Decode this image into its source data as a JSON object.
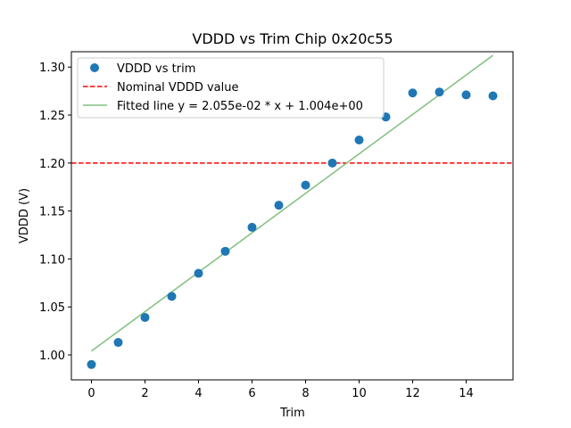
{
  "chart_data": {
    "type": "scatter",
    "title": "VDDD vs Trim Chip 0x20c55",
    "xlabel": "Trim",
    "ylabel": "VDDD (V)",
    "xlim": [
      -0.75,
      15.75
    ],
    "ylim": [
      0.974,
      1.316
    ],
    "xticks": [
      0,
      2,
      4,
      6,
      8,
      10,
      12,
      14
    ],
    "xtick_labels": [
      "0",
      "2",
      "4",
      "6",
      "8",
      "10",
      "12",
      "14"
    ],
    "yticks": [
      1.0,
      1.05,
      1.1,
      1.15,
      1.2,
      1.25,
      1.3
    ],
    "ytick_labels": [
      "1.00",
      "1.05",
      "1.10",
      "1.15",
      "1.20",
      "1.25",
      "1.30"
    ],
    "grid": false,
    "legend_position": "top-left",
    "series": [
      {
        "name": "VDDD vs trim",
        "kind": "scatter",
        "color": "#1f77b4",
        "x": [
          0,
          1,
          2,
          3,
          4,
          5,
          6,
          7,
          8,
          9,
          10,
          11,
          12,
          13,
          14,
          15
        ],
        "y": [
          0.99,
          1.013,
          1.039,
          1.061,
          1.085,
          1.108,
          1.133,
          1.156,
          1.177,
          1.2,
          1.224,
          1.248,
          1.273,
          1.274,
          1.271,
          1.27
        ]
      },
      {
        "name": "Nominal VDDD value",
        "kind": "hline",
        "color": "#ff0000",
        "style": "dashed",
        "y": 1.2
      },
      {
        "name": "Fitted line y = 2.055e-02 * x + 1.004e+00",
        "kind": "line",
        "color": "#80c080",
        "slope": 0.02055,
        "intercept": 1.004,
        "x_range": [
          0,
          15
        ]
      }
    ]
  }
}
